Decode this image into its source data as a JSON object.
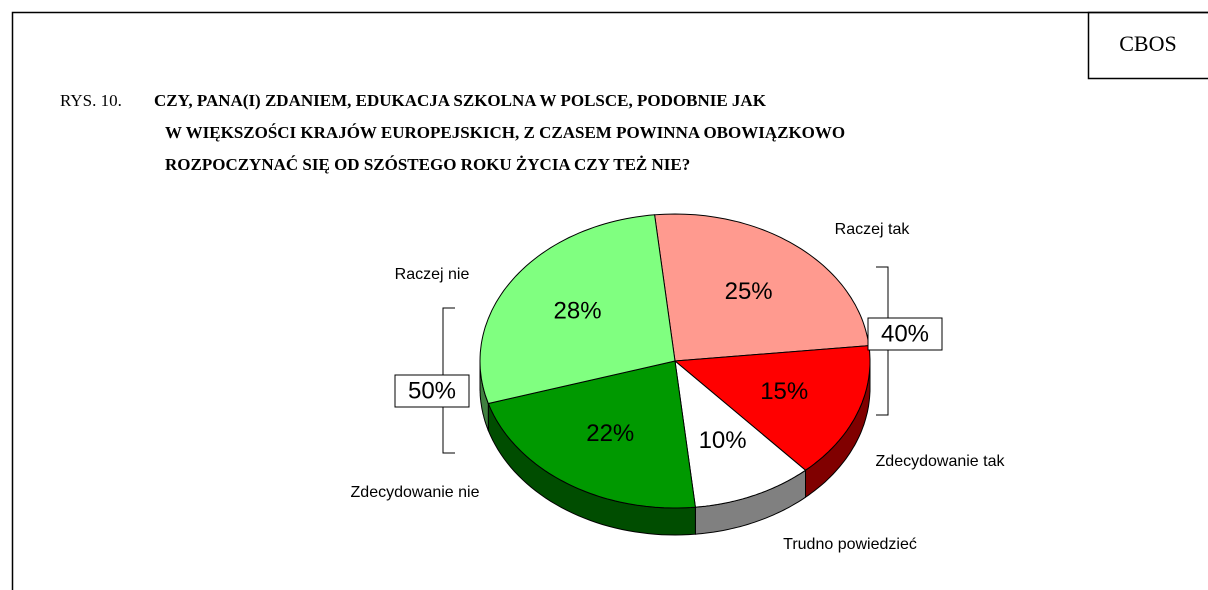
{
  "chart_data": {
    "type": "pie3d",
    "source": "CBOS",
    "figure_label": "RYS. 10.",
    "title": [
      "CZY, PANA(I) ZDANIEM, EDUKACJA SZKOLNA W POLSCE, PODOBNIE JAK",
      "W WIĘKSZOŚCI KRAJÓW EUROPEJSKICH, Z CZASEM POWINNA OBOWIĄZKOWO",
      "ROZPOCZYNAĆ SIĘ OD SZÓSTEGO ROKU ŻYCIA CZY TEŻ NIE?"
    ],
    "categories": [
      "Raczej tak",
      "Zdecydowanie tak",
      "Trudno powiedzieć",
      "Zdecydowanie nie",
      "Raczej nie"
    ],
    "values": [
      25,
      15,
      10,
      22,
      28
    ],
    "value_labels": [
      "25%",
      "15%",
      "10%",
      "22%",
      "28%"
    ],
    "colors": [
      "#ff9a8f",
      "#ff0000",
      "#ffffff",
      "#009900",
      "#80ff80"
    ],
    "group_totals": [
      {
        "value": 40,
        "label": "40%"
      },
      {
        "value": 50,
        "label": "50%"
      }
    ]
  }
}
